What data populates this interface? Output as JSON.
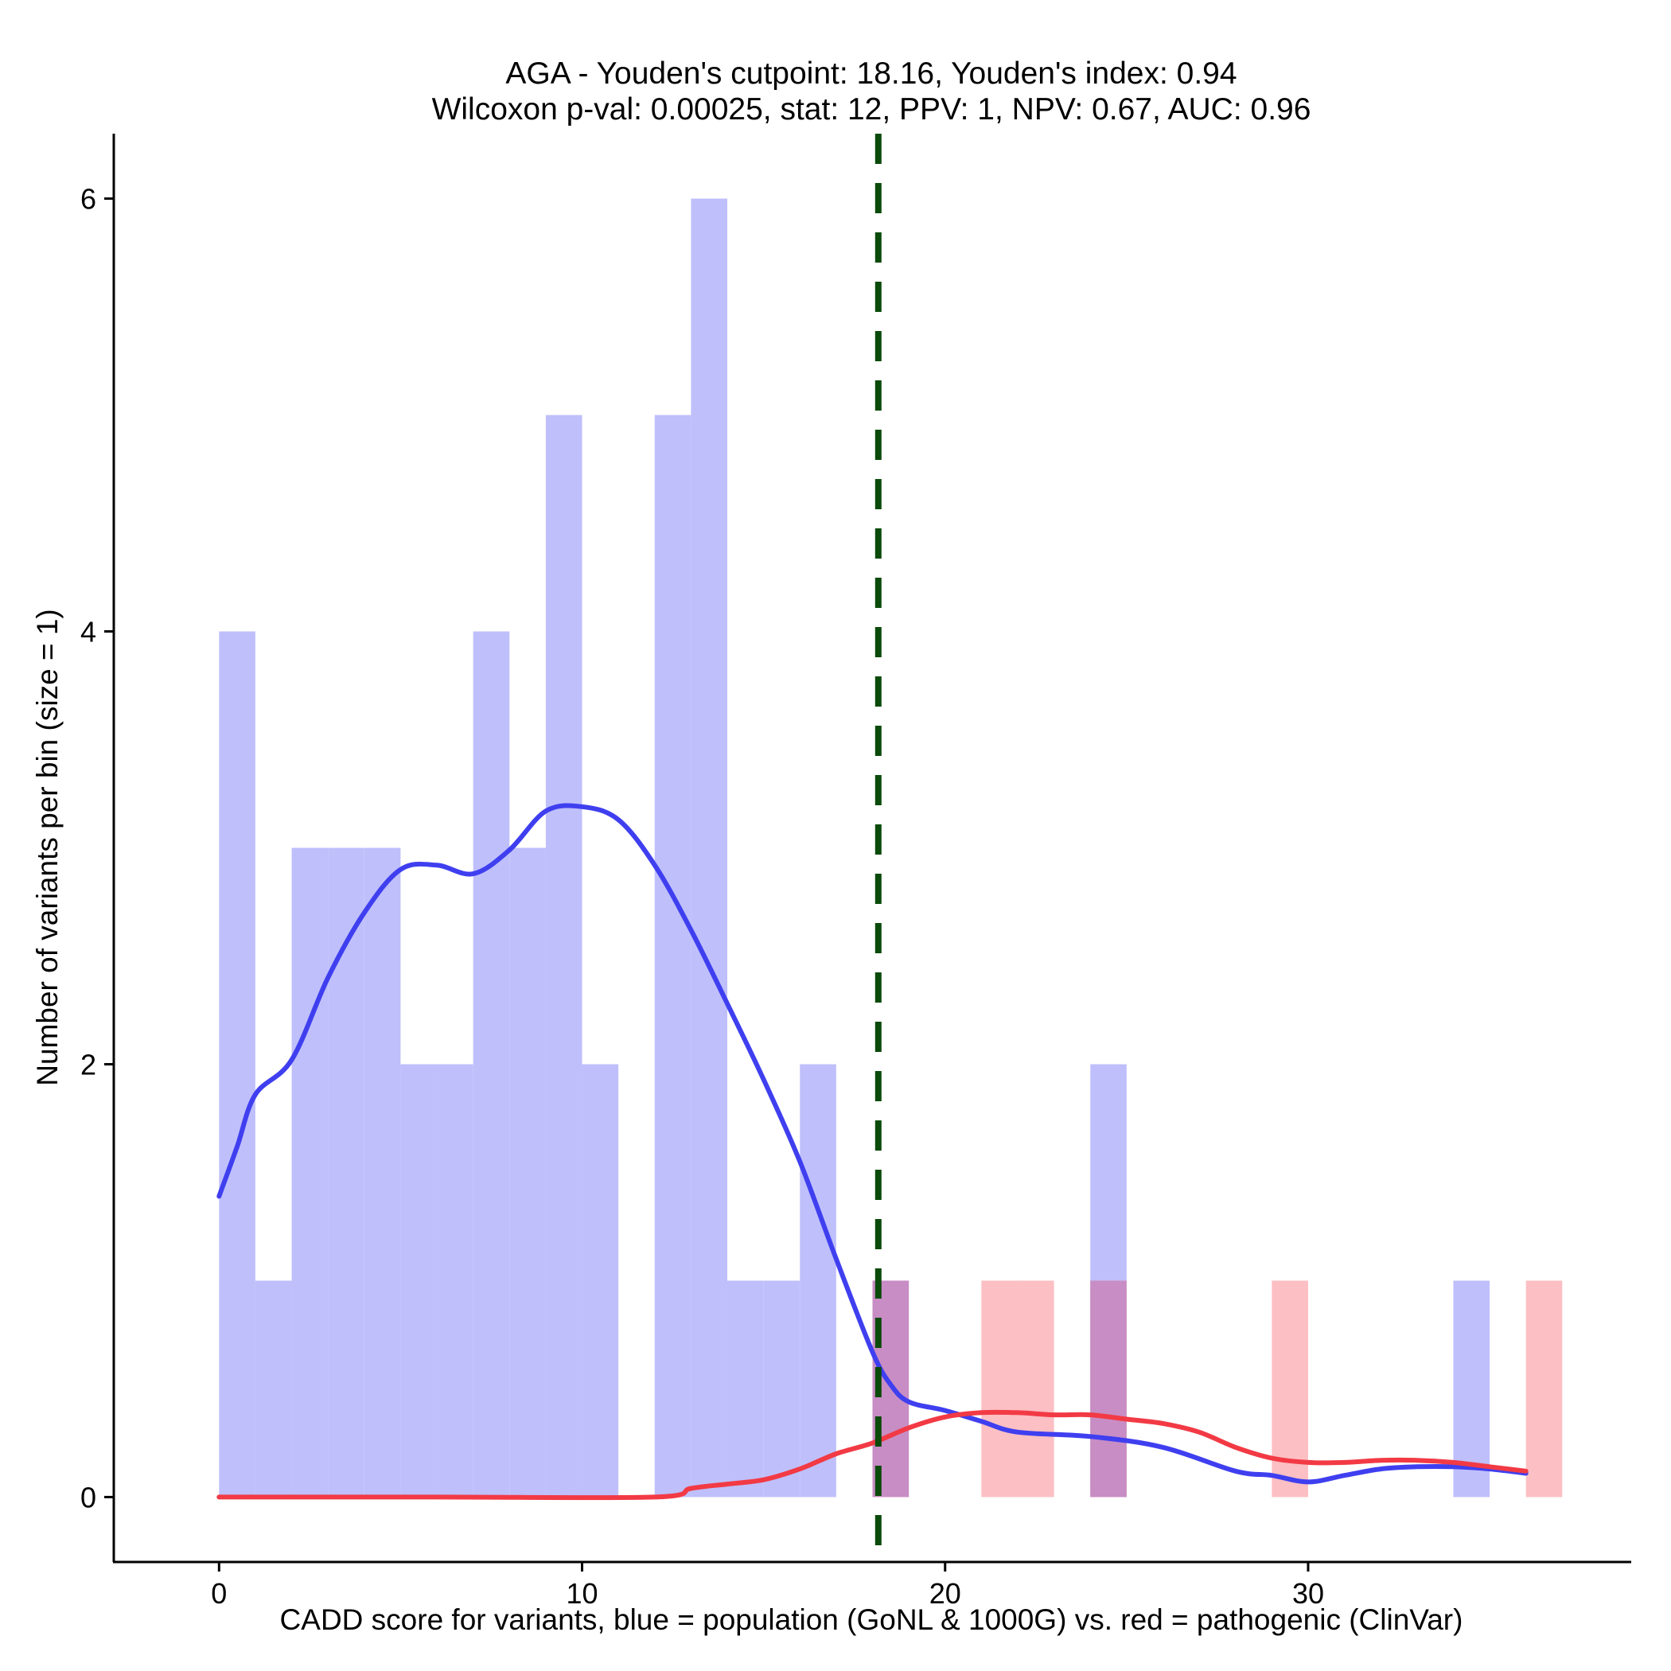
{
  "chart_data": {
    "type": "histogram",
    "title_line1": "AGA - Youden's cutpoint: 18.16, Youden's index: 0.94",
    "title_line2": "Wilcoxon p-val: 0.00025, stat: 12, PPV: 1, NPV: 0.67, AUC: 0.96",
    "xlabel": "CADD score for variants, blue = population (GoNL & 1000G) vs. red = pathogenic (ClinVar)",
    "ylabel": "Number of variants per bin (size = 1)",
    "xlim": [
      -2.9,
      38.9
    ],
    "ylim": [
      -0.3,
      6.3
    ],
    "x_ticks": [
      0,
      10,
      20,
      30
    ],
    "y_ticks": [
      0,
      2,
      4,
      6
    ],
    "bin_size": 1,
    "cutpoint": 18.16,
    "colors": {
      "population_bar": "#bfbffc",
      "pathogenic_bar": "#fcbfc3",
      "overlap_bar": "#c88dc4",
      "population_line": "#3f3ff0",
      "pathogenic_line": "#f23a45",
      "cutpoint_line": "#0a4a0a"
    },
    "series": [
      {
        "name": "population (GoNL & 1000G)",
        "bins": [
          [
            0,
            4
          ],
          [
            1,
            1
          ],
          [
            2,
            3
          ],
          [
            3,
            3
          ],
          [
            4,
            3
          ],
          [
            5,
            2
          ],
          [
            6,
            2
          ],
          [
            7,
            4
          ],
          [
            8,
            3
          ],
          [
            9,
            5
          ],
          [
            10,
            2
          ],
          [
            12,
            5
          ],
          [
            13,
            6
          ],
          [
            14,
            1
          ],
          [
            15,
            1
          ],
          [
            16,
            2
          ],
          [
            18,
            1
          ],
          [
            24,
            2
          ],
          [
            34,
            1
          ]
        ],
        "density_curve": [
          [
            0,
            1.39
          ],
          [
            0.5,
            1.62
          ],
          [
            1,
            1.86
          ],
          [
            2,
            2.02
          ],
          [
            3,
            2.4
          ],
          [
            4,
            2.7
          ],
          [
            5,
            2.9
          ],
          [
            6,
            2.92
          ],
          [
            7,
            2.88
          ],
          [
            8,
            2.99
          ],
          [
            9,
            3.17
          ],
          [
            10,
            3.19
          ],
          [
            11,
            3.13
          ],
          [
            12,
            2.92
          ],
          [
            13,
            2.62
          ],
          [
            14,
            2.28
          ],
          [
            15,
            1.93
          ],
          [
            16,
            1.55
          ],
          [
            17,
            1.1
          ],
          [
            18,
            0.67
          ],
          [
            18.5,
            0.52
          ],
          [
            19,
            0.44
          ],
          [
            20,
            0.4
          ],
          [
            21,
            0.35
          ],
          [
            22,
            0.3
          ],
          [
            24,
            0.28
          ],
          [
            26,
            0.23
          ],
          [
            28,
            0.12
          ],
          [
            29,
            0.1
          ],
          [
            30,
            0.07
          ],
          [
            31,
            0.1
          ],
          [
            32,
            0.13
          ],
          [
            33,
            0.14
          ],
          [
            34,
            0.14
          ],
          [
            35,
            0.13
          ],
          [
            36,
            0.11
          ]
        ]
      },
      {
        "name": "pathogenic (ClinVar)",
        "bins": [
          [
            18,
            1
          ],
          [
            21,
            1
          ],
          [
            22,
            1
          ],
          [
            24,
            1
          ],
          [
            29,
            1
          ],
          [
            36,
            1
          ]
        ],
        "density_curve": [
          [
            0,
            0
          ],
          [
            6,
            0
          ],
          [
            12,
            0
          ],
          [
            13,
            0.04
          ],
          [
            14,
            0.06
          ],
          [
            15,
            0.08
          ],
          [
            16,
            0.13
          ],
          [
            17,
            0.2
          ],
          [
            18,
            0.25
          ],
          [
            19,
            0.32
          ],
          [
            20,
            0.37
          ],
          [
            21,
            0.39
          ],
          [
            22,
            0.39
          ],
          [
            23,
            0.38
          ],
          [
            24,
            0.38
          ],
          [
            25,
            0.36
          ],
          [
            26,
            0.34
          ],
          [
            27,
            0.3
          ],
          [
            28,
            0.23
          ],
          [
            29,
            0.18
          ],
          [
            30,
            0.16
          ],
          [
            31,
            0.16
          ],
          [
            32,
            0.17
          ],
          [
            33,
            0.17
          ],
          [
            34,
            0.16
          ],
          [
            35,
            0.14
          ],
          [
            36,
            0.12
          ]
        ]
      }
    ]
  }
}
